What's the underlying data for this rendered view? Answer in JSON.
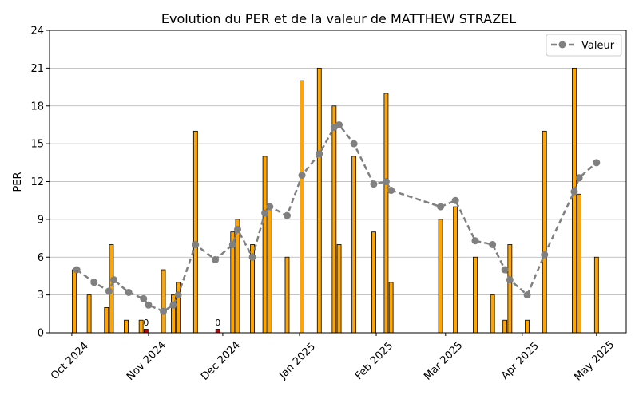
{
  "chart_data": {
    "type": "bar",
    "title": "Evolution du PER et de la valeur de MATTHEW STRAZEL",
    "ylabel": "PER",
    "xlabel": "",
    "ylim": [
      0,
      24
    ],
    "yticks": [
      0,
      3,
      6,
      9,
      12,
      15,
      18,
      21,
      24
    ],
    "xlim": [
      "2024-09-22",
      "2025-05-13"
    ],
    "xticks": [
      {
        "date": "2024-10-01",
        "label": "Oct 2024"
      },
      {
        "date": "2024-11-01",
        "label": "Nov 2024"
      },
      {
        "date": "2024-12-01",
        "label": "Dec 2024"
      },
      {
        "date": "2025-01-01",
        "label": "Jan 2025"
      },
      {
        "date": "2025-02-01",
        "label": "Feb 2025"
      },
      {
        "date": "2025-03-01",
        "label": "Mar 2025"
      },
      {
        "date": "2025-04-01",
        "label": "Apr 2025"
      },
      {
        "date": "2025-05-01",
        "label": "May 2025"
      }
    ],
    "grid": "y",
    "legend_position": "top-right",
    "colors": {
      "bar": "#FFA500",
      "bar_zero": "#CC0000",
      "line": "#808080"
    },
    "bars": [
      {
        "date": "2024-10-02",
        "value": 5
      },
      {
        "date": "2024-10-08",
        "value": 3
      },
      {
        "date": "2024-10-15",
        "value": 2
      },
      {
        "date": "2024-10-17",
        "value": 7
      },
      {
        "date": "2024-10-23",
        "value": 1
      },
      {
        "date": "2024-10-29",
        "value": 1
      },
      {
        "date": "2024-10-31",
        "value": 0,
        "label": "0"
      },
      {
        "date": "2024-11-07",
        "value": 5
      },
      {
        "date": "2024-11-11",
        "value": 3
      },
      {
        "date": "2024-11-13",
        "value": 4
      },
      {
        "date": "2024-11-20",
        "value": 16
      },
      {
        "date": "2024-11-29",
        "value": 0,
        "label": "0"
      },
      {
        "date": "2024-12-05",
        "value": 8
      },
      {
        "date": "2024-12-07",
        "value": 9
      },
      {
        "date": "2024-12-13",
        "value": 7
      },
      {
        "date": "2024-12-18",
        "value": 14
      },
      {
        "date": "2024-12-20",
        "value": 10
      },
      {
        "date": "2024-12-27",
        "value": 6
      },
      {
        "date": "2025-01-02",
        "value": 20
      },
      {
        "date": "2025-01-09",
        "value": 21
      },
      {
        "date": "2025-01-15",
        "value": 18
      },
      {
        "date": "2025-01-17",
        "value": 7
      },
      {
        "date": "2025-01-23",
        "value": 14
      },
      {
        "date": "2025-01-31",
        "value": 8
      },
      {
        "date": "2025-02-05",
        "value": 19
      },
      {
        "date": "2025-02-07",
        "value": 4
      },
      {
        "date": "2025-02-27",
        "value": 9
      },
      {
        "date": "2025-03-05",
        "value": 10
      },
      {
        "date": "2025-03-13",
        "value": 6
      },
      {
        "date": "2025-03-20",
        "value": 3
      },
      {
        "date": "2025-03-25",
        "value": 1
      },
      {
        "date": "2025-03-27",
        "value": 7
      },
      {
        "date": "2025-04-03",
        "value": 1
      },
      {
        "date": "2025-04-10",
        "value": 16
      },
      {
        "date": "2025-04-22",
        "value": 21
      },
      {
        "date": "2025-04-24",
        "value": 11
      },
      {
        "date": "2025-05-01",
        "value": 6
      }
    ],
    "series": [
      {
        "name": "Valeur",
        "type": "line",
        "points": [
          {
            "date": "2024-10-03",
            "value": 5.0
          },
          {
            "date": "2024-10-10",
            "value": 4.0
          },
          {
            "date": "2024-10-16",
            "value": 3.3
          },
          {
            "date": "2024-10-18",
            "value": 4.2
          },
          {
            "date": "2024-10-24",
            "value": 3.2
          },
          {
            "date": "2024-10-30",
            "value": 2.7
          },
          {
            "date": "2024-11-01",
            "value": 2.2
          },
          {
            "date": "2024-11-07",
            "value": 1.7
          },
          {
            "date": "2024-11-11",
            "value": 2.2
          },
          {
            "date": "2024-11-13",
            "value": 3.0
          },
          {
            "date": "2024-11-20",
            "value": 7.0
          },
          {
            "date": "2024-11-28",
            "value": 5.8
          },
          {
            "date": "2024-12-05",
            "value": 7.0
          },
          {
            "date": "2024-12-07",
            "value": 8.2
          },
          {
            "date": "2024-12-13",
            "value": 6.0
          },
          {
            "date": "2024-12-18",
            "value": 9.5
          },
          {
            "date": "2024-12-20",
            "value": 10.0
          },
          {
            "date": "2024-12-27",
            "value": 9.3
          },
          {
            "date": "2025-01-02",
            "value": 12.5
          },
          {
            "date": "2025-01-09",
            "value": 14.2
          },
          {
            "date": "2025-01-15",
            "value": 16.3
          },
          {
            "date": "2025-01-17",
            "value": 16.5
          },
          {
            "date": "2025-01-23",
            "value": 15.0
          },
          {
            "date": "2025-01-31",
            "value": 11.8
          },
          {
            "date": "2025-02-05",
            "value": 12.0
          },
          {
            "date": "2025-02-07",
            "value": 11.3
          },
          {
            "date": "2025-02-27",
            "value": 10.0
          },
          {
            "date": "2025-03-05",
            "value": 10.5
          },
          {
            "date": "2025-03-13",
            "value": 7.3
          },
          {
            "date": "2025-03-20",
            "value": 7.0
          },
          {
            "date": "2025-03-25",
            "value": 5.0
          },
          {
            "date": "2025-03-27",
            "value": 4.2
          },
          {
            "date": "2025-04-03",
            "value": 3.0
          },
          {
            "date": "2025-04-10",
            "value": 6.2
          },
          {
            "date": "2025-04-22",
            "value": 11.2
          },
          {
            "date": "2025-04-24",
            "value": 12.3
          },
          {
            "date": "2025-05-01",
            "value": 13.5
          }
        ]
      }
    ]
  }
}
